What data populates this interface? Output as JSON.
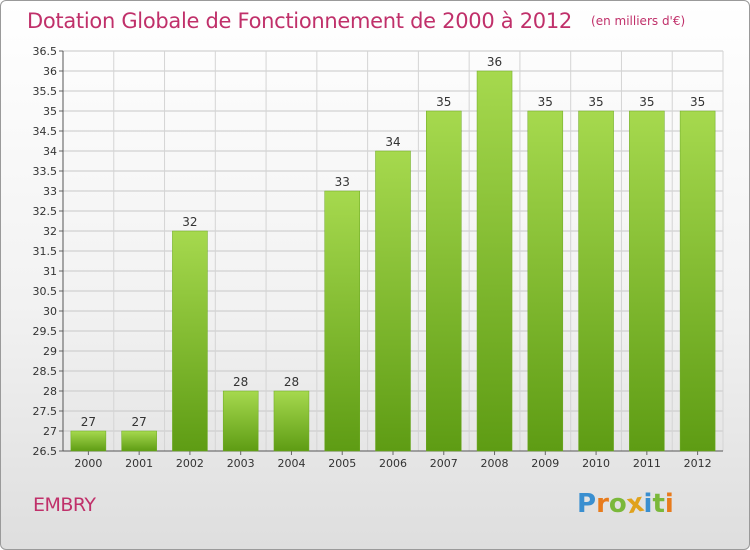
{
  "chart_data": {
    "type": "bar",
    "title": "Dotation Globale de Fonctionnement de 2000 à 2012",
    "subtitle": "(en milliers d'€)",
    "categories": [
      "2000",
      "2001",
      "2002",
      "2003",
      "2004",
      "2005",
      "2006",
      "2007",
      "2008",
      "2009",
      "2010",
      "2011",
      "2012"
    ],
    "values": [
      27,
      27,
      32,
      28,
      28,
      33,
      34,
      35,
      36,
      35,
      35,
      35,
      35
    ],
    "ylim": [
      26.5,
      36.5
    ],
    "yticks": [
      "26.5",
      "27",
      "27.5",
      "28",
      "28.5",
      "29",
      "29.5",
      "30",
      "30.5",
      "31",
      "31.5",
      "32",
      "32.5",
      "33",
      "33.5",
      "34",
      "34.5",
      "35",
      "35.5",
      "36",
      "36.5"
    ],
    "xlabel": "",
    "ylabel": "",
    "grid": true,
    "bar_color": "#7cba2e",
    "bar_color_light": "#a4d84c"
  },
  "commune": "EMBRY",
  "logo": {
    "letters": [
      "P",
      "r",
      "o",
      "x",
      "i",
      "t",
      "i"
    ],
    "colors": [
      "#3a8fd0",
      "#e87b1c",
      "#7ab83a",
      "#e0a21c",
      "#3a8fd0",
      "#7ab83a",
      "#e87b1c"
    ]
  }
}
